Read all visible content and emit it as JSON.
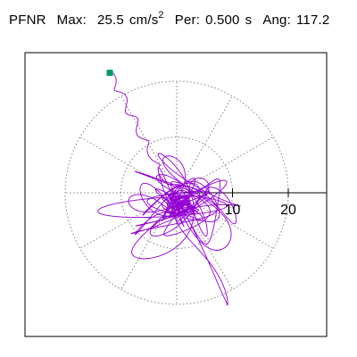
{
  "header": {
    "station": "PFNR",
    "max_label": "Max:",
    "max_value": "25.5",
    "max_unit_base": "cm/s",
    "max_unit_exp": "2",
    "per_label": "Per:",
    "per_value": "0.500",
    "per_unit": "s",
    "ang_label": "Ang:",
    "ang_value": "117.2"
  },
  "plot": {
    "trace_color": "#9400d3",
    "marker_color": "#009966",
    "grid_color": "#808080",
    "axis_color": "#000000",
    "rings": [
      10,
      20
    ],
    "tick_labels": [
      "10",
      "20"
    ],
    "max_amplitude": 25.5,
    "angle_deg": 117.2
  }
}
